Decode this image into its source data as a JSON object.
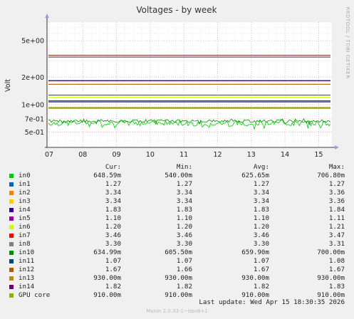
{
  "chart_data": {
    "type": "line",
    "title": "Voltages - by week",
    "ylabel": "Volt",
    "side_label": "RRDTOOL / TOBI OETIKER",
    "y_scale": "log",
    "ylim": [
      0.34,
      8.0
    ],
    "y_ticks": [
      {
        "value": 5.0,
        "label": "5e+00"
      },
      {
        "value": 2.0,
        "label": "2e+00"
      },
      {
        "value": 1.0,
        "label": "1e+00"
      },
      {
        "value": 0.7,
        "label": "7e-01"
      },
      {
        "value": 0.5,
        "label": "5e-01"
      }
    ],
    "x_ticks": [
      "07",
      "08",
      "09",
      "10",
      "11",
      "12",
      "13",
      "14",
      "15"
    ],
    "series": [
      {
        "name": "in0",
        "color": "#00cc00",
        "value": 0.64859,
        "min": 0.54,
        "avg": 0.62565,
        "max": 0.7068,
        "noisy": true
      },
      {
        "name": "in1",
        "color": "#0066b3",
        "value": 1.27
      },
      {
        "name": "in2",
        "color": "#ff8000",
        "value": 3.34
      },
      {
        "name": "in3",
        "color": "#ffcc00",
        "value": 3.34
      },
      {
        "name": "in4",
        "color": "#330099",
        "value": 1.83
      },
      {
        "name": "in5",
        "color": "#990099",
        "value": 1.1
      },
      {
        "name": "in6",
        "color": "#ccff00",
        "value": 1.2
      },
      {
        "name": "in7",
        "color": "#ff0000",
        "value": 3.46
      },
      {
        "name": "in8",
        "color": "#808080",
        "value": 3.3
      },
      {
        "name": "in10",
        "color": "#008f00",
        "value": 0.63499,
        "min": 0.6055,
        "avg": 0.6599,
        "max": 0.7,
        "noisy": true
      },
      {
        "name": "in11",
        "color": "#00487d",
        "value": 1.07
      },
      {
        "name": "in12",
        "color": "#b35a00",
        "value": 1.67
      },
      {
        "name": "in13",
        "color": "#b38f00",
        "value": 0.93
      },
      {
        "name": "in14",
        "color": "#6b006b",
        "value": 1.82
      },
      {
        "name": "GPU core",
        "color": "#8fb300",
        "value": 0.91
      }
    ]
  },
  "legend": {
    "headers": {
      "cur": "Cur:",
      "min": "Min:",
      "avg": "Avg:",
      "max": "Max:"
    },
    "rows": [
      {
        "name": "in0",
        "color": "#00cc00",
        "cur": "648.59m",
        "min": "540.00m",
        "avg": "625.65m",
        "max": "706.80m"
      },
      {
        "name": "in1",
        "color": "#0066b3",
        "cur": "1.27",
        "min": "1.27",
        "avg": "1.27",
        "max": "1.27"
      },
      {
        "name": "in2",
        "color": "#ff8000",
        "cur": "3.34",
        "min": "3.34",
        "avg": "3.34",
        "max": "3.36"
      },
      {
        "name": "in3",
        "color": "#ffcc00",
        "cur": "3.34",
        "min": "3.34",
        "avg": "3.34",
        "max": "3.36"
      },
      {
        "name": "in4",
        "color": "#330099",
        "cur": "1.83",
        "min": "1.83",
        "avg": "1.83",
        "max": "1.84"
      },
      {
        "name": "in5",
        "color": "#990099",
        "cur": "1.10",
        "min": "1.10",
        "avg": "1.10",
        "max": "1.11"
      },
      {
        "name": "in6",
        "color": "#ccff00",
        "cur": "1.20",
        "min": "1.20",
        "avg": "1.20",
        "max": "1.21"
      },
      {
        "name": "in7",
        "color": "#ff0000",
        "cur": "3.46",
        "min": "3.46",
        "avg": "3.46",
        "max": "3.47"
      },
      {
        "name": "in8",
        "color": "#808080",
        "cur": "3.30",
        "min": "3.30",
        "avg": "3.30",
        "max": "3.31"
      },
      {
        "name": "in10",
        "color": "#008f00",
        "cur": "634.99m",
        "min": "605.50m",
        "avg": "659.90m",
        "max": "700.00m"
      },
      {
        "name": "in11",
        "color": "#00487d",
        "cur": "1.07",
        "min": "1.07",
        "avg": "1.07",
        "max": "1.08"
      },
      {
        "name": "in12",
        "color": "#b35a00",
        "cur": "1.67",
        "min": "1.66",
        "avg": "1.67",
        "max": "1.67"
      },
      {
        "name": "in13",
        "color": "#b38f00",
        "cur": "930.00m",
        "min": "930.00m",
        "avg": "930.00m",
        "max": "930.00m"
      },
      {
        "name": "in14",
        "color": "#6b006b",
        "cur": "1.82",
        "min": "1.82",
        "avg": "1.82",
        "max": "1.83"
      },
      {
        "name": "GPU core",
        "color": "#8fb300",
        "cur": "910.00m",
        "min": "910.00m",
        "avg": "910.00m",
        "max": "910.00m"
      }
    ]
  },
  "last_update": "Last update: Wed Apr 15 18:30:35 2026",
  "footer": "Munin 2.0.33-1~bpo8+1"
}
